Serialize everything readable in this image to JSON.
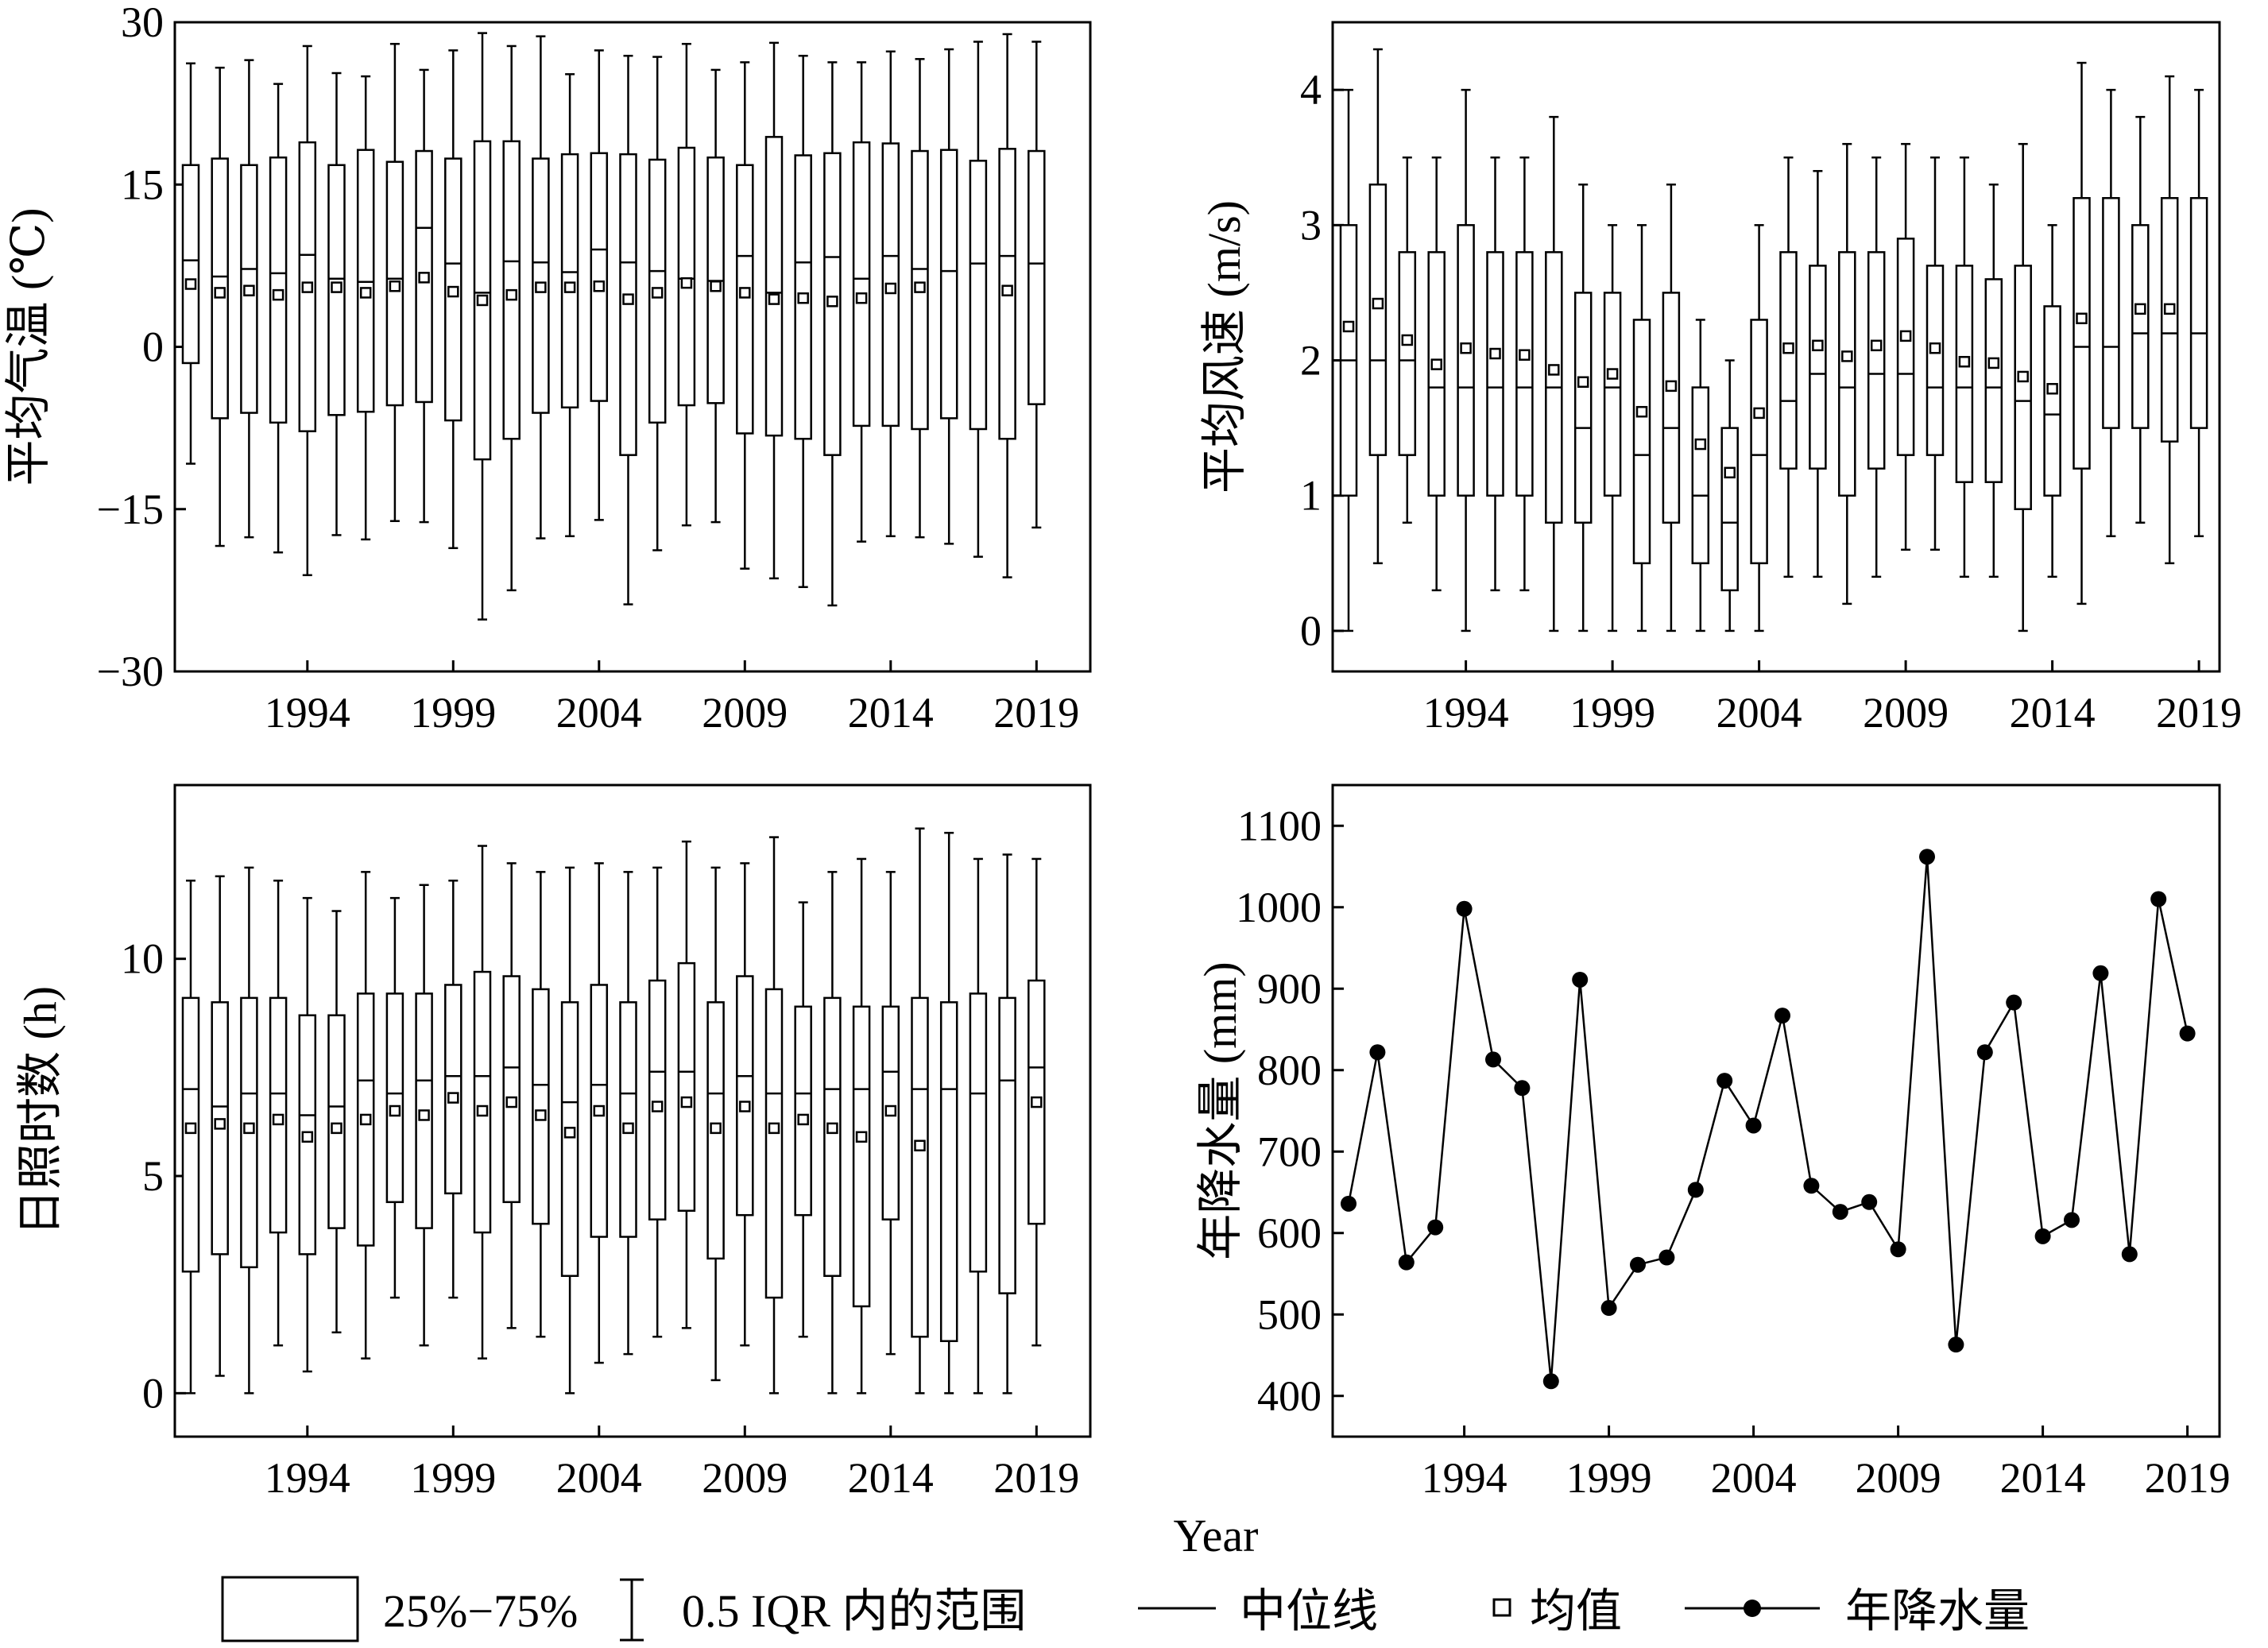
{
  "chart_data": [
    {
      "id": "temp",
      "type": "box",
      "ylabel": "平均气温 (℃)",
      "ylim": [
        -30,
        30
      ],
      "yticks": [
        -30,
        -15,
        0,
        15,
        30
      ],
      "ytick_labels": [
        "−30",
        "−15",
        "0",
        "15",
        "30"
      ],
      "years": [
        1990,
        1991,
        1992,
        1993,
        1994,
        1995,
        1996,
        1997,
        1998,
        1999,
        2000,
        2001,
        2002,
        2003,
        2004,
        2005,
        2006,
        2007,
        2008,
        2009,
        2010,
        2011,
        2012,
        2013,
        2014,
        2015,
        2016,
        2017,
        2018,
        2019
      ],
      "xticks": [
        "1994",
        "1999",
        "2004",
        "2009",
        "2014",
        "2019"
      ],
      "wmax": [
        26.2,
        25.8,
        26.5,
        24.3,
        27.8,
        25.3,
        25.0,
        28.0,
        25.6,
        27.4,
        29.0,
        27.8,
        28.7,
        25.2,
        27.4,
        26.9,
        26.8,
        28.0,
        25.6,
        26.3,
        28.1,
        26.9,
        26.3,
        26.3,
        27.3,
        26.6,
        27.5,
        28.2,
        28.9,
        28.2
      ],
      "q3": [
        16.8,
        17.4,
        16.8,
        17.5,
        18.9,
        16.8,
        18.2,
        17.1,
        18.1,
        17.4,
        19.0,
        19.0,
        17.4,
        17.8,
        17.9,
        17.8,
        17.3,
        18.4,
        17.5,
        16.8,
        19.4,
        17.7,
        17.9,
        18.9,
        18.8,
        18.1,
        18.2,
        17.2,
        18.3,
        18.1
      ],
      "median": [
        8.0,
        6.5,
        7.2,
        6.8,
        8.5,
        6.3,
        6.0,
        6.3,
        11.0,
        7.7,
        5.0,
        7.9,
        7.8,
        6.9,
        9.0,
        7.8,
        7.0,
        6.3,
        6.1,
        8.4,
        5.0,
        7.8,
        8.3,
        6.3,
        8.4,
        7.2,
        7.0,
        7.7,
        8.4,
        7.7
      ],
      "mean": [
        5.8,
        5.0,
        5.2,
        4.8,
        5.5,
        5.5,
        5.0,
        5.6,
        6.4,
        5.1,
        4.3,
        4.8,
        5.5,
        5.5,
        5.6,
        4.4,
        5.0,
        5.9,
        5.6,
        5.0,
        4.4,
        4.5,
        4.2,
        4.5,
        5.4,
        5.5,
        null,
        null,
        5.2,
        null
      ],
      "q1": [
        -1.5,
        -6.6,
        -6.1,
        -7.0,
        -7.8,
        -6.3,
        -6.0,
        -5.4,
        -5.1,
        -6.8,
        -10.4,
        -8.5,
        -6.1,
        -5.6,
        -5.0,
        -10.0,
        -7.0,
        -5.4,
        -5.2,
        -8.0,
        -8.2,
        -8.5,
        -10.0,
        -7.3,
        -7.3,
        -7.6,
        -6.6,
        -7.6,
        -8.5,
        -5.3
      ],
      "wmin": [
        -10.8,
        -18.4,
        -17.6,
        -19.0,
        -21.1,
        -17.4,
        -17.8,
        -16.1,
        -16.2,
        -18.6,
        -25.2,
        -22.5,
        -17.7,
        -17.5,
        -16.0,
        -23.8,
        -18.8,
        -16.5,
        -16.2,
        -20.5,
        -21.4,
        -22.2,
        -23.9,
        -18.0,
        -17.5,
        -17.6,
        -18.2,
        -19.4,
        -21.3,
        -16.7
      ]
    },
    {
      "id": "wind",
      "type": "box",
      "ylabel": "平均风速 (m/s)",
      "ylim": [
        -0.3,
        4.5
      ],
      "yticks": [
        0,
        1,
        2,
        3,
        4
      ],
      "ytick_labels": [
        "0",
        "1",
        "2",
        "3",
        "4"
      ],
      "years": [
        1990,
        1991,
        1992,
        1993,
        1994,
        1995,
        1996,
        1997,
        1998,
        1999,
        2000,
        2001,
        2002,
        2003,
        2004,
        2005,
        2006,
        2007,
        2008,
        2009,
        2010,
        2011,
        2012,
        2013,
        2014,
        2015,
        2016,
        2017,
        2018,
        2019
      ],
      "xticks": [
        "1994",
        "1999",
        "2004",
        "2009",
        "2014",
        "2019"
      ],
      "wmax": [
        4.0,
        4.3,
        3.5,
        3.5,
        4.0,
        3.5,
        3.5,
        3.8,
        3.3,
        3.0,
        3.0,
        3.3,
        2.3,
        2.0,
        3.0,
        3.5,
        3.4,
        3.6,
        3.5,
        3.6,
        3.5,
        3.5,
        3.3,
        3.6,
        3.0,
        4.2,
        4.0,
        3.8,
        4.1,
        4.0
      ],
      "q3": [
        3.0,
        3.3,
        2.8,
        2.8,
        3.0,
        2.8,
        2.8,
        2.8,
        2.5,
        2.5,
        2.3,
        2.5,
        1.8,
        1.5,
        2.3,
        2.8,
        2.7,
        2.8,
        2.8,
        2.9,
        2.7,
        2.7,
        2.6,
        2.7,
        2.4,
        3.2,
        3.2,
        3.0,
        3.2,
        3.2
      ],
      "median": [
        2.0,
        2.0,
        2.0,
        1.8,
        1.8,
        1.8,
        1.8,
        1.8,
        1.5,
        1.8,
        1.3,
        1.5,
        1.0,
        0.8,
        1.3,
        1.7,
        1.9,
        1.8,
        1.9,
        1.9,
        1.8,
        1.8,
        1.8,
        1.7,
        1.6,
        2.1,
        2.1,
        2.2,
        2.2,
        2.2
      ],
      "mean": [
        2.25,
        2.42,
        2.15,
        1.97,
        2.09,
        2.05,
        2.04,
        1.93,
        1.84,
        1.9,
        1.62,
        1.81,
        1.38,
        1.17,
        1.61,
        2.09,
        2.11,
        2.03,
        2.11,
        2.18,
        2.09,
        1.99,
        1.98,
        1.88,
        1.79,
        2.31,
        null,
        2.38,
        2.38,
        null
      ],
      "q1": [
        1.0,
        1.3,
        1.3,
        1.0,
        1.0,
        1.0,
        1.0,
        0.8,
        0.8,
        1.0,
        0.5,
        0.8,
        0.5,
        0.3,
        0.5,
        1.2,
        1.2,
        1.0,
        1.2,
        1.3,
        1.3,
        1.1,
        1.1,
        0.9,
        1.0,
        1.2,
        1.5,
        1.5,
        1.4,
        1.5
      ],
      "wmin": [
        0.0,
        0.5,
        0.8,
        0.3,
        0.0,
        0.3,
        0.3,
        0.0,
        0.0,
        0.0,
        0.0,
        0.0,
        0.0,
        0.0,
        0.0,
        0.4,
        0.4,
        0.2,
        0.4,
        0.6,
        0.6,
        0.4,
        0.4,
        0.0,
        0.4,
        0.2,
        0.7,
        0.8,
        0.5,
        0.7
      ]
    },
    {
      "id": "sunshine",
      "type": "box",
      "ylabel": "日照时数 (h)",
      "ylim": [
        -1,
        14
      ],
      "yticks": [
        0,
        5,
        10
      ],
      "ytick_labels": [
        "0",
        "5",
        "10"
      ],
      "years": [
        1990,
        1991,
        1992,
        1993,
        1994,
        1995,
        1996,
        1997,
        1998,
        1999,
        2000,
        2001,
        2002,
        2003,
        2004,
        2005,
        2006,
        2007,
        2008,
        2009,
        2010,
        2011,
        2012,
        2013,
        2014,
        2015,
        2016,
        2017,
        2018,
        2019
      ],
      "xticks": [
        "1994",
        "1999",
        "2004",
        "2009",
        "2014",
        "2019"
      ],
      "wmax": [
        11.8,
        11.9,
        12.1,
        11.8,
        11.4,
        11.1,
        12.0,
        11.4,
        11.7,
        11.8,
        12.6,
        12.2,
        12.0,
        12.1,
        12.2,
        12.0,
        12.1,
        12.7,
        12.1,
        12.2,
        12.8,
        11.3,
        12.0,
        12.3,
        12.0,
        13.0,
        12.9,
        12.3,
        12.4,
        12.3
      ],
      "q3": [
        9.1,
        9.0,
        9.1,
        9.1,
        8.7,
        8.7,
        9.2,
        9.2,
        9.2,
        9.4,
        9.7,
        9.6,
        9.3,
        9.0,
        9.4,
        9.0,
        9.5,
        9.9,
        9.0,
        9.6,
        9.3,
        8.9,
        9.1,
        8.9,
        8.9,
        9.1,
        9.0,
        9.2,
        9.1,
        9.5
      ],
      "median": [
        7.0,
        6.6,
        6.9,
        6.9,
        6.4,
        6.6,
        7.2,
        6.9,
        7.2,
        7.3,
        7.3,
        7.5,
        7.1,
        6.7,
        7.1,
        6.9,
        7.4,
        7.4,
        6.9,
        7.3,
        6.9,
        6.9,
        7.0,
        7.0,
        7.4,
        7.0,
        7.0,
        6.9,
        7.2,
        7.5
      ],
      "mean": [
        6.1,
        6.2,
        6.1,
        6.3,
        5.9,
        6.1,
        6.3,
        6.5,
        6.4,
        6.8,
        6.5,
        6.7,
        6.4,
        6.0,
        6.5,
        6.1,
        6.6,
        6.7,
        6.1,
        6.6,
        6.1,
        6.3,
        6.1,
        5.9,
        6.5,
        5.7,
        null,
        null,
        null,
        6.7
      ],
      "q1": [
        2.8,
        3.2,
        2.9,
        3.7,
        3.2,
        3.8,
        3.4,
        4.4,
        3.8,
        4.6,
        3.7,
        4.4,
        3.9,
        2.7,
        3.6,
        3.6,
        4.0,
        4.2,
        3.1,
        4.1,
        2.2,
        4.1,
        2.7,
        2.0,
        4.0,
        1.3,
        1.2,
        2.8,
        2.3,
        3.9
      ],
      "wmin": [
        0.0,
        0.4,
        0.0,
        1.1,
        0.5,
        1.4,
        0.8,
        2.2,
        1.1,
        2.2,
        0.8,
        1.5,
        1.3,
        0.0,
        0.7,
        0.9,
        1.3,
        1.5,
        0.3,
        1.1,
        0.0,
        1.3,
        0.0,
        0.0,
        0.9,
        0.0,
        0.0,
        0.0,
        0.0,
        1.1
      ]
    },
    {
      "id": "precip",
      "type": "line",
      "ylabel": "年降水量 (mm)",
      "xlabel": "Year",
      "ylim": [
        350,
        1150
      ],
      "yticks": [
        400,
        500,
        600,
        700,
        800,
        900,
        1000,
        1100
      ],
      "ytick_labels": [
        "400",
        "500",
        "600",
        "700",
        "800",
        "900",
        "1000",
        "1100"
      ],
      "years": [
        1990,
        1991,
        1992,
        1993,
        1994,
        1995,
        1996,
        1997,
        1998,
        1999,
        2000,
        2001,
        2002,
        2003,
        2004,
        2005,
        2006,
        2007,
        2008,
        2009,
        2010,
        2011,
        2012,
        2013,
        2014,
        2015,
        2016,
        2017,
        2018,
        2019
      ],
      "xticks": [
        "1994",
        "1999",
        "2004",
        "2009",
        "2014",
        "2019"
      ],
      "values": [
        636,
        822,
        564,
        607,
        998,
        813,
        778,
        418,
        911,
        508,
        561,
        570,
        653,
        787,
        732,
        867,
        658,
        626,
        638,
        580,
        1062,
        463,
        822,
        883,
        596,
        616,
        919,
        574,
        1010,
        845
      ]
    }
  ],
  "legend": {
    "box_label": "25%−75%",
    "whisker_label": "0.5 IQR 内的范围",
    "median_label": "中位线",
    "mean_label": "均值",
    "line_label": "年降水量"
  }
}
